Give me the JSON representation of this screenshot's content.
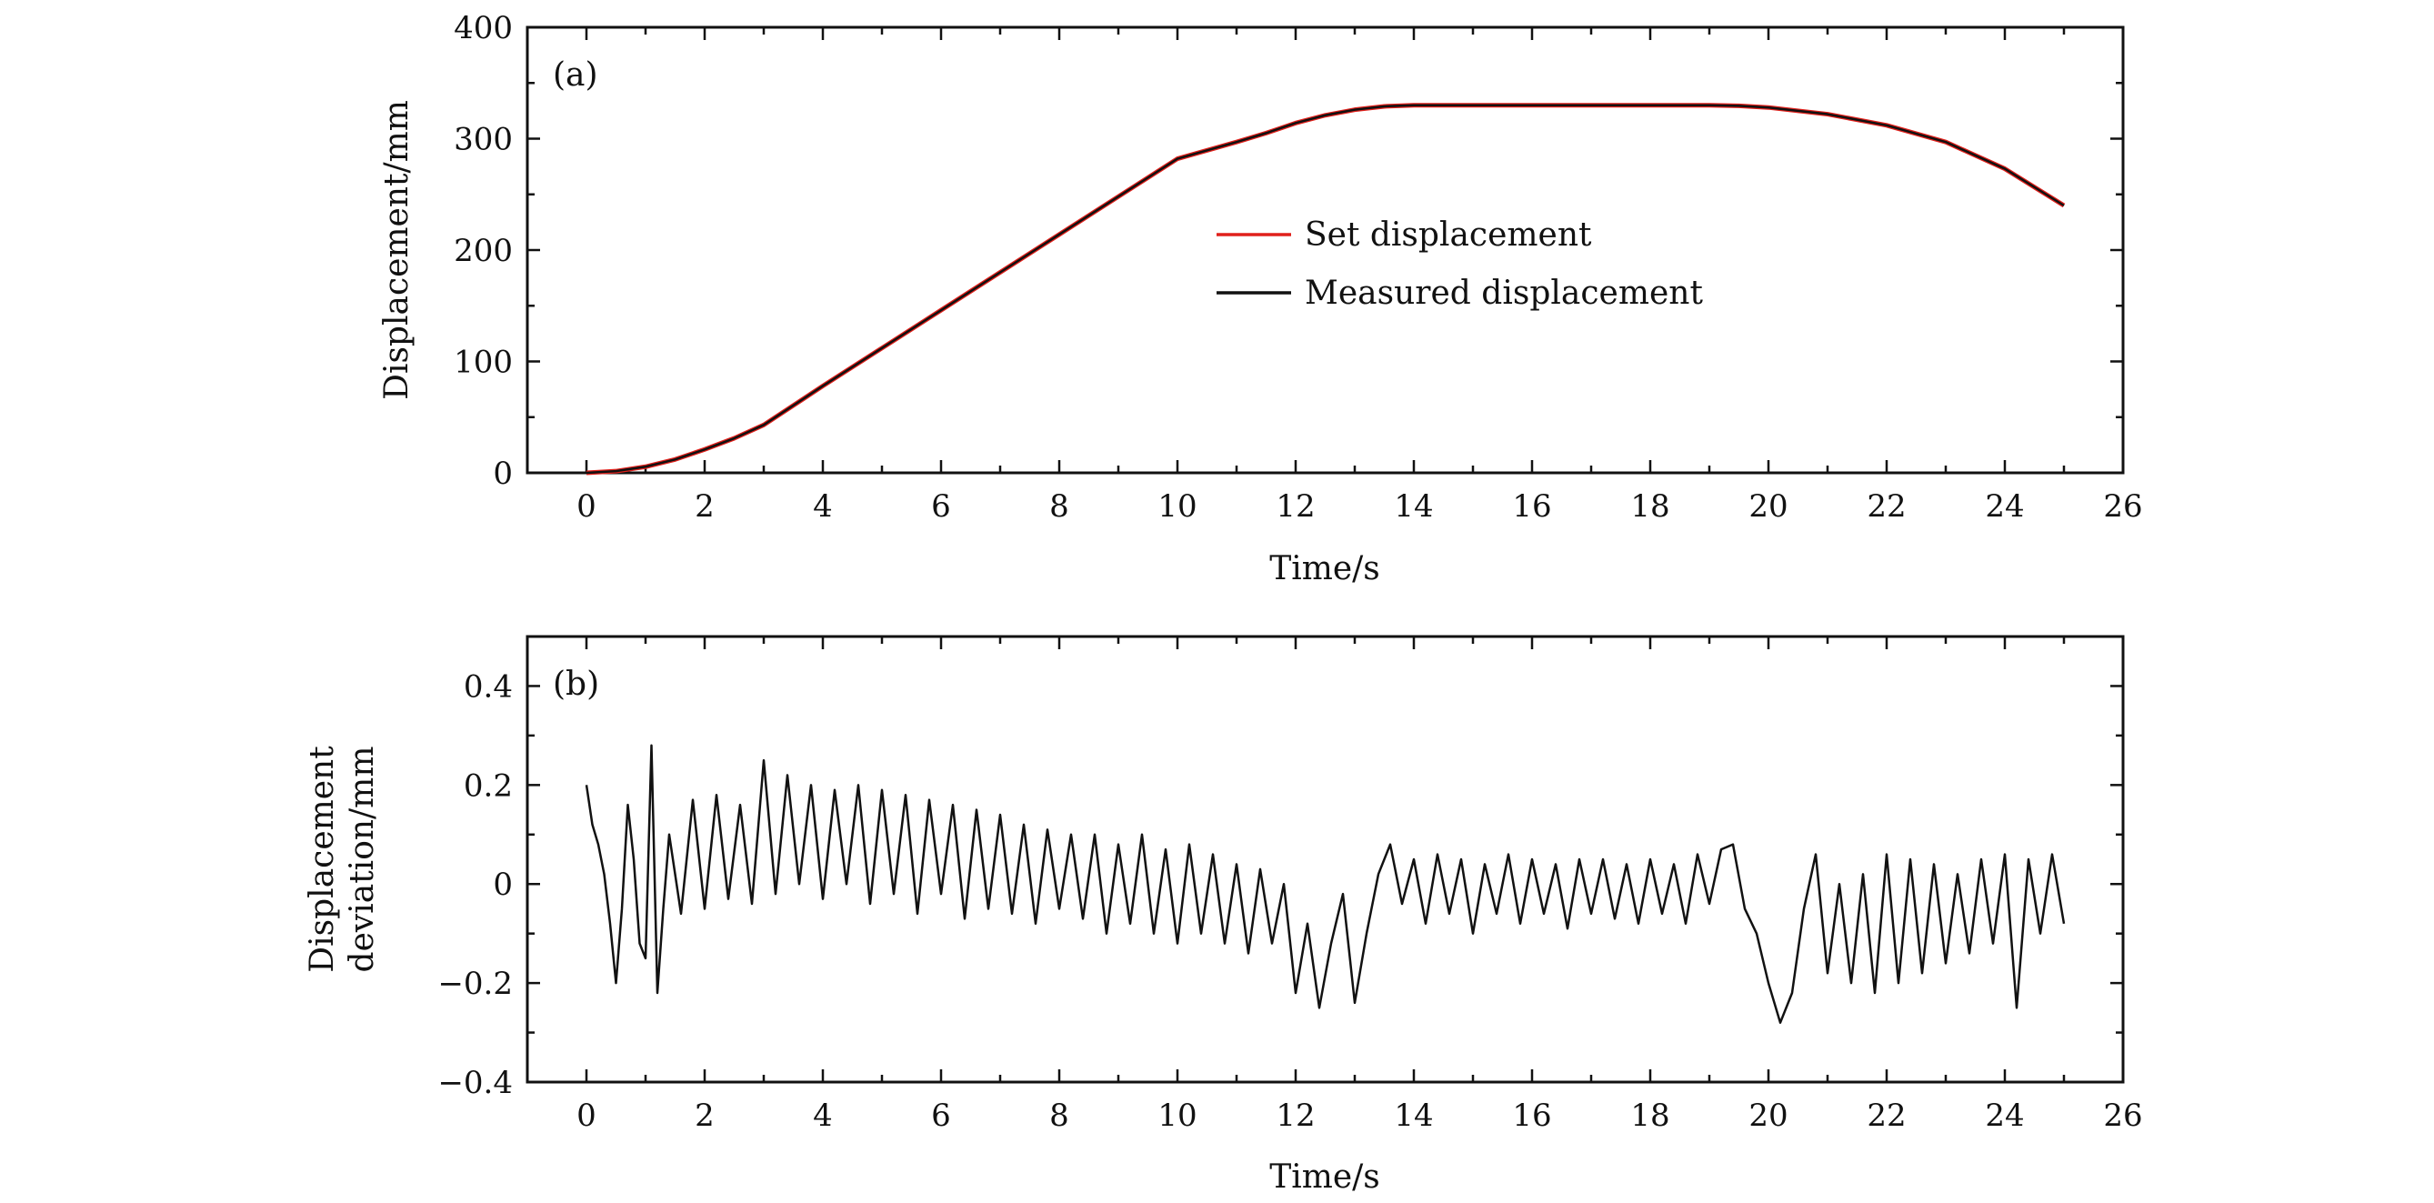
{
  "chart_data": [
    {
      "type": "line",
      "panel_label": "(a)",
      "xlabel": "Time/s",
      "ylabel": "Displacement/mm",
      "xlim": [
        -1,
        26
      ],
      "ylim": [
        0,
        400
      ],
      "xticks": [
        0,
        2,
        4,
        6,
        8,
        10,
        12,
        14,
        16,
        18,
        20,
        22,
        24,
        26
      ],
      "yticks": [
        0,
        100,
        200,
        300,
        400
      ],
      "grid": false,
      "legend_position": "center",
      "series": [
        {
          "name": "Set displacement",
          "color": "#e0201b",
          "x": [
            0,
            0.5,
            1,
            1.5,
            2,
            2.5,
            3,
            4,
            5,
            6,
            7,
            8,
            9,
            10,
            11,
            11.5,
            12,
            12.5,
            13,
            13.5,
            14,
            15,
            16,
            17,
            18,
            19,
            19.5,
            20,
            21,
            22,
            23,
            24,
            25
          ],
          "y": [
            0,
            1.5,
            5.5,
            12,
            21,
            31,
            43,
            78,
            112,
            146,
            180,
            214,
            248,
            282,
            297,
            305,
            314,
            321,
            326,
            329,
            330,
            330,
            330,
            330,
            330,
            330,
            329.5,
            328,
            322,
            312,
            297,
            273,
            240
          ]
        },
        {
          "name": "Measured displacement",
          "color": "#111111",
          "x": [
            0,
            0.5,
            1,
            1.5,
            2,
            2.5,
            3,
            4,
            5,
            6,
            7,
            8,
            9,
            10,
            11,
            11.5,
            12,
            12.5,
            13,
            13.5,
            14,
            15,
            16,
            17,
            18,
            19,
            19.5,
            20,
            21,
            22,
            23,
            24,
            25
          ],
          "y": [
            0,
            1.5,
            5.5,
            12,
            21,
            31,
            43,
            78,
            112,
            146,
            180,
            214,
            248,
            282,
            297,
            305,
            314,
            321,
            326,
            329,
            330,
            330,
            330,
            330,
            330,
            330,
            329.5,
            328,
            322,
            312,
            297,
            273,
            240
          ]
        }
      ]
    },
    {
      "type": "line",
      "panel_label": "(b)",
      "xlabel": "Time/s",
      "ylabel_lines": [
        "Displacement",
        "deviation/mm"
      ],
      "xlim": [
        -1,
        26
      ],
      "ylim": [
        -0.4,
        0.5
      ],
      "xticks": [
        0,
        2,
        4,
        6,
        8,
        10,
        12,
        14,
        16,
        18,
        20,
        22,
        24,
        26
      ],
      "yticks": [
        -0.4,
        -0.2,
        0,
        0.2,
        0.4
      ],
      "ytick_labels": [
        "−0.4",
        "−0.2",
        "0",
        "0.2",
        "0.4"
      ],
      "grid": false,
      "series": [
        {
          "color": "#111111",
          "x": [
            0,
            0.1,
            0.2,
            0.3,
            0.4,
            0.5,
            0.6,
            0.7,
            0.8,
            0.9,
            1.0,
            1.1,
            1.2,
            1.3,
            1.4,
            1.5,
            1.6,
            1.8,
            2.0,
            2.2,
            2.4,
            2.6,
            2.8,
            3.0,
            3.2,
            3.4,
            3.6,
            3.8,
            4.0,
            4.2,
            4.4,
            4.6,
            4.8,
            5.0,
            5.2,
            5.4,
            5.6,
            5.8,
            6.0,
            6.2,
            6.4,
            6.6,
            6.8,
            7.0,
            7.2,
            7.4,
            7.6,
            7.8,
            8.0,
            8.2,
            8.4,
            8.6,
            8.8,
            9.0,
            9.2,
            9.4,
            9.6,
            9.8,
            10.0,
            10.2,
            10.4,
            10.6,
            10.8,
            11.0,
            11.2,
            11.4,
            11.6,
            11.8,
            12.0,
            12.2,
            12.4,
            12.6,
            12.8,
            13.0,
            13.2,
            13.4,
            13.6,
            13.8,
            14.0,
            14.2,
            14.4,
            14.6,
            14.8,
            15.0,
            15.2,
            15.4,
            15.6,
            15.8,
            16.0,
            16.2,
            16.4,
            16.6,
            16.8,
            17.0,
            17.2,
            17.4,
            17.6,
            17.8,
            18.0,
            18.2,
            18.4,
            18.6,
            18.8,
            19.0,
            19.2,
            19.4,
            19.6,
            19.8,
            20.0,
            20.2,
            20.4,
            20.6,
            20.8,
            21.0,
            21.2,
            21.4,
            21.6,
            21.8,
            22.0,
            22.2,
            22.4,
            22.6,
            22.8,
            23.0,
            23.2,
            23.4,
            23.6,
            23.8,
            24.0,
            24.2,
            24.4,
            24.6,
            24.8,
            25.0
          ],
          "y": [
            0.2,
            0.12,
            0.08,
            0.02,
            -0.08,
            -0.2,
            -0.05,
            0.16,
            0.05,
            -0.12,
            -0.15,
            0.28,
            -0.22,
            -0.05,
            0.1,
            0.02,
            -0.06,
            0.17,
            -0.05,
            0.18,
            -0.03,
            0.16,
            -0.04,
            0.25,
            -0.02,
            0.22,
            0.0,
            0.2,
            -0.03,
            0.19,
            0.0,
            0.2,
            -0.04,
            0.19,
            -0.02,
            0.18,
            -0.06,
            0.17,
            -0.02,
            0.16,
            -0.07,
            0.15,
            -0.05,
            0.14,
            -0.06,
            0.12,
            -0.08,
            0.11,
            -0.05,
            0.1,
            -0.07,
            0.1,
            -0.1,
            0.08,
            -0.08,
            0.1,
            -0.1,
            0.07,
            -0.12,
            0.08,
            -0.1,
            0.06,
            -0.12,
            0.04,
            -0.14,
            0.03,
            -0.12,
            0.0,
            -0.22,
            -0.08,
            -0.25,
            -0.12,
            -0.02,
            -0.24,
            -0.1,
            0.02,
            0.08,
            -0.04,
            0.05,
            -0.08,
            0.06,
            -0.06,
            0.05,
            -0.1,
            0.04,
            -0.06,
            0.06,
            -0.08,
            0.05,
            -0.06,
            0.04,
            -0.09,
            0.05,
            -0.06,
            0.05,
            -0.07,
            0.04,
            -0.08,
            0.05,
            -0.06,
            0.04,
            -0.08,
            0.06,
            -0.04,
            0.07,
            0.08,
            -0.05,
            -0.1,
            -0.2,
            -0.28,
            -0.22,
            -0.05,
            0.06,
            -0.18,
            0.0,
            -0.2,
            0.02,
            -0.22,
            0.06,
            -0.2,
            0.05,
            -0.18,
            0.04,
            -0.16,
            0.02,
            -0.14,
            0.05,
            -0.12,
            0.06,
            -0.25,
            0.05,
            -0.1,
            0.06,
            -0.08
          ]
        }
      ]
    }
  ]
}
